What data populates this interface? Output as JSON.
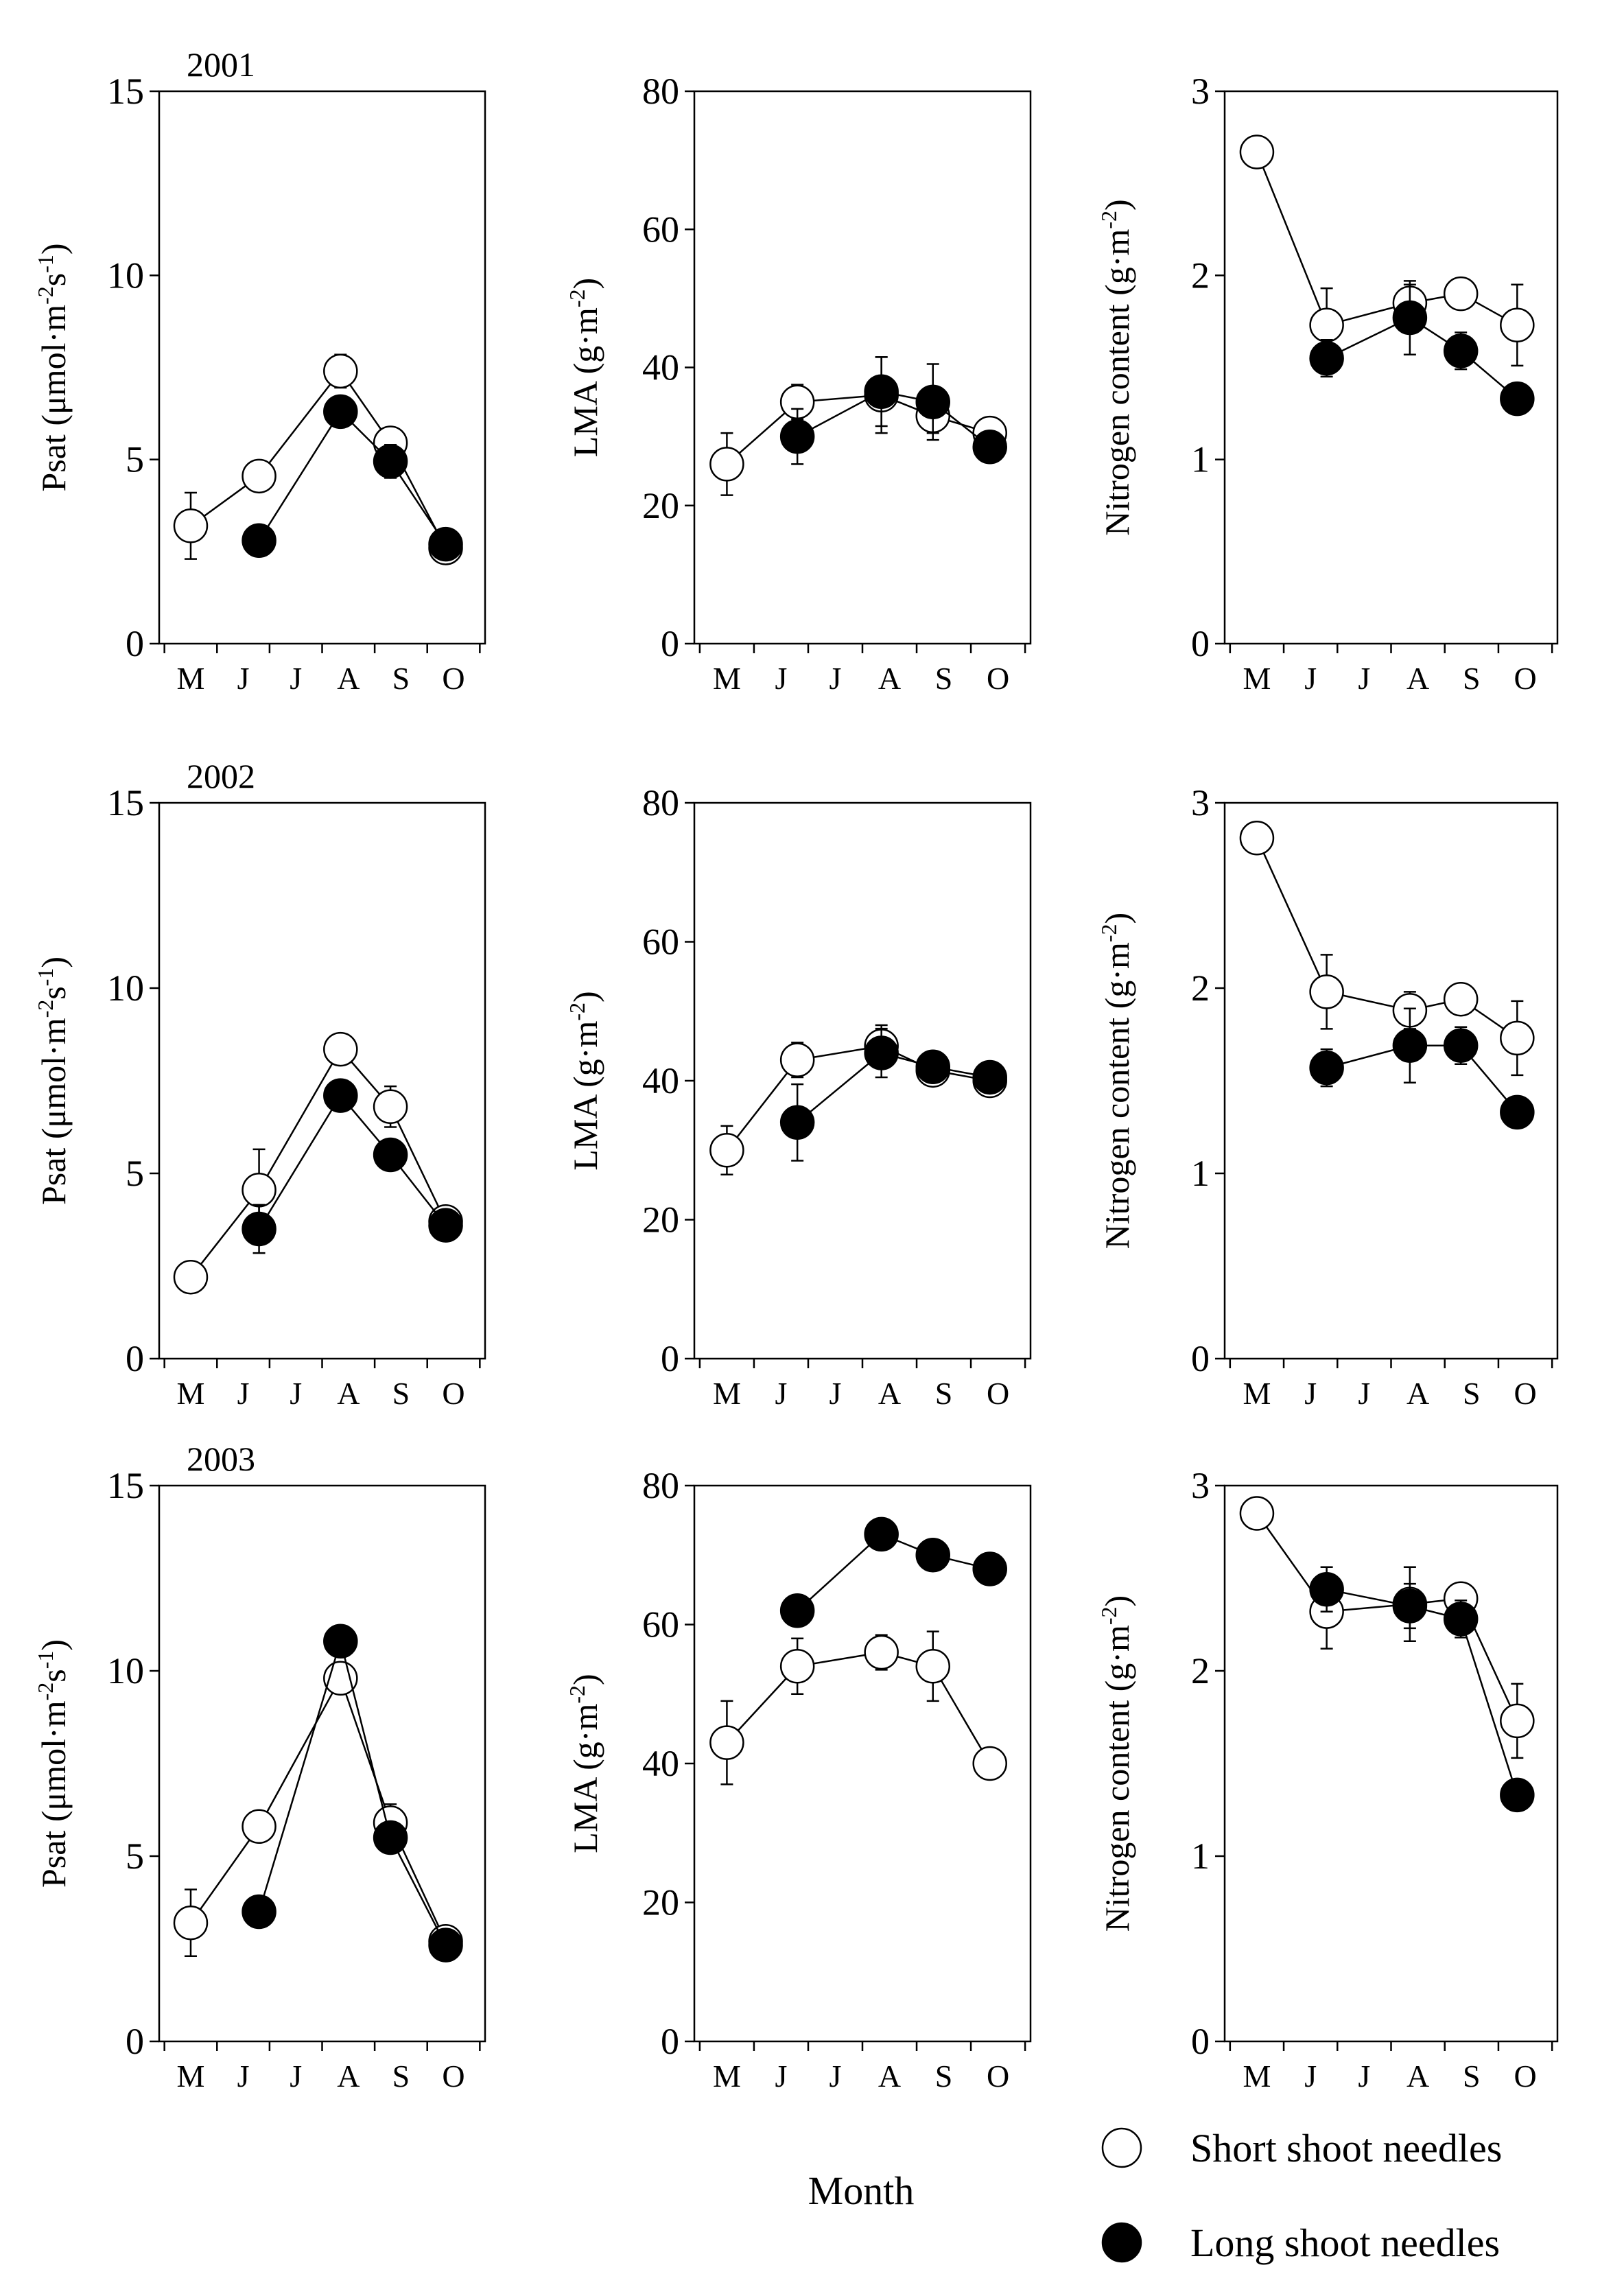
{
  "chart_data": {
    "type": "scatter",
    "figure_xlabel": "Month",
    "month_ticks": [
      "M",
      "J",
      "J",
      "A",
      "S",
      "O"
    ],
    "legend": [
      {
        "key": "short",
        "label": "Short shoot needles",
        "marker": "open-circle"
      },
      {
        "key": "long",
        "label": "Long shoot needles",
        "marker": "filled-circle"
      }
    ],
    "panels": [
      {
        "id": "psat-2001",
        "title": "2001",
        "ylabel_parts": [
          "Psat (μmol·m",
          "-2",
          "s",
          "-1",
          ")"
        ],
        "ylim": [
          0,
          15
        ],
        "yticks": [
          0,
          5,
          10,
          15
        ],
        "series": [
          {
            "key": "short",
            "x": [
              5.0,
              6.3,
              7.85,
              8.8,
              9.85
            ],
            "y": [
              3.2,
              4.55,
              7.4,
              5.45,
              2.6
            ],
            "err": [
              0.9,
              0.25,
              0.45,
              0.3,
              0.15
            ]
          },
          {
            "key": "long",
            "x": [
              6.3,
              7.85,
              8.8,
              9.85
            ],
            "y": [
              2.8,
              6.3,
              4.95,
              2.7
            ],
            "err": [
              0.3,
              0.25,
              0.45,
              0.15
            ]
          }
        ]
      },
      {
        "id": "lma-2001",
        "title": "",
        "ylabel_parts": [
          "LMA (g·m",
          "-2",
          ")"
        ],
        "ylim": [
          0,
          80
        ],
        "yticks": [
          0,
          20,
          40,
          60,
          80
        ],
        "series": [
          {
            "key": "short",
            "x": [
              5.0,
              6.3,
              7.85,
              8.8,
              9.85
            ],
            "y": [
              26,
              35,
              36,
              33,
              30.5
            ],
            "err": [
              4.5,
              2.5,
              5.5,
              2.5,
              1.5
            ]
          },
          {
            "key": "long",
            "x": [
              6.3,
              7.85,
              8.8,
              9.85
            ],
            "y": [
              30,
              36.5,
              35,
              28.5
            ],
            "err": [
              4,
              5,
              5.5,
              1.5
            ]
          }
        ]
      },
      {
        "id": "n-2001",
        "title": "",
        "ylabel_parts": [
          "Nitrogen content (g·m",
          "-2",
          ")"
        ],
        "ylim": [
          0,
          3
        ],
        "yticks": [
          0,
          1,
          2,
          3
        ],
        "series": [
          {
            "key": "short",
            "x": [
              5.0,
              6.3,
              7.85,
              8.8,
              9.85
            ],
            "y": [
              2.67,
              1.73,
              1.85,
              1.9,
              1.73
            ],
            "err": [
              0.07,
              0.2,
              0.1,
              0.05,
              0.22
            ]
          },
          {
            "key": "long",
            "x": [
              6.3,
              7.85,
              8.8,
              9.85
            ],
            "y": [
              1.55,
              1.77,
              1.59,
              1.33
            ],
            "err": [
              0.1,
              0.2,
              0.1,
              0.04
            ]
          }
        ]
      },
      {
        "id": "psat-2002",
        "title": "2002",
        "ylabel_parts": [
          "Psat (μmol·m",
          "-2",
          "s",
          "-1",
          ")"
        ],
        "ylim": [
          0,
          15
        ],
        "yticks": [
          0,
          5,
          10,
          15
        ],
        "series": [
          {
            "key": "short",
            "x": [
              5.0,
              6.3,
              7.85,
              8.8,
              9.85
            ],
            "y": [
              2.2,
              4.55,
              8.35,
              6.8,
              3.7
            ],
            "err": [
              0.1,
              1.1,
              0.3,
              0.55,
              0.2
            ]
          },
          {
            "key": "long",
            "x": [
              6.3,
              7.85,
              8.8,
              9.85
            ],
            "y": [
              3.5,
              7.1,
              5.5,
              3.6
            ],
            "err": [
              0.65,
              0.4,
              0.2,
              0.2
            ]
          }
        ]
      },
      {
        "id": "lma-2002",
        "title": "",
        "ylabel_parts": [
          "LMA (g·m",
          "-2",
          ")"
        ],
        "ylim": [
          0,
          80
        ],
        "yticks": [
          0,
          20,
          40,
          60,
          80
        ],
        "series": [
          {
            "key": "short",
            "x": [
              5.0,
              6.3,
              7.85,
              8.8,
              9.85
            ],
            "y": [
              30,
              43,
              45,
              41.5,
              40
            ],
            "err": [
              3.5,
              2.5,
              3,
              2,
              1
            ]
          },
          {
            "key": "long",
            "x": [
              6.3,
              7.85,
              8.8,
              9.85
            ],
            "y": [
              34,
              44,
              42,
              40.5
            ],
            "err": [
              5.5,
              3.5,
              2,
              1
            ]
          }
        ]
      },
      {
        "id": "n-2002",
        "title": "",
        "ylabel_parts": [
          "Nitrogen content (g·m",
          "-2",
          ")"
        ],
        "ylim": [
          0,
          3
        ],
        "yticks": [
          0,
          1,
          2,
          3
        ],
        "series": [
          {
            "key": "short",
            "x": [
              5.0,
              6.3,
              7.85,
              8.8,
              9.85
            ],
            "y": [
              2.81,
              1.98,
              1.88,
              1.94,
              1.73
            ],
            "err": [
              0.04,
              0.2,
              0.1,
              0.05,
              0.2
            ]
          },
          {
            "key": "long",
            "x": [
              6.3,
              7.85,
              8.8,
              9.85
            ],
            "y": [
              1.57,
              1.69,
              1.69,
              1.33
            ],
            "err": [
              0.1,
              0.2,
              0.1,
              0.04
            ]
          }
        ]
      },
      {
        "id": "psat-2003",
        "title": "2003",
        "ylabel_parts": [
          "Psat (μmol·m",
          "-2",
          "s",
          "-1",
          ")"
        ],
        "ylim": [
          0,
          15
        ],
        "yticks": [
          0,
          5,
          10,
          15
        ],
        "series": [
          {
            "key": "short",
            "x": [
              5.0,
              6.3,
              7.85,
              8.8,
              9.85
            ],
            "y": [
              3.2,
              5.8,
              9.8,
              5.9,
              2.7
            ],
            "err": [
              0.9,
              0.2,
              0.3,
              0.5,
              0.15
            ]
          },
          {
            "key": "long",
            "x": [
              6.3,
              7.85,
              8.8,
              9.85
            ],
            "y": [
              3.5,
              10.8,
              5.5,
              2.6
            ],
            "err": [
              0.2,
              0.4,
              0.2,
              0.15
            ]
          }
        ]
      },
      {
        "id": "lma-2003",
        "title": "",
        "ylabel_parts": [
          "LMA (g·m",
          "-2",
          ")"
        ],
        "ylim": [
          0,
          80
        ],
        "yticks": [
          0,
          20,
          40,
          60,
          80
        ],
        "series": [
          {
            "key": "short",
            "x": [
              5.0,
              6.3,
              7.85,
              8.8,
              9.85
            ],
            "y": [
              43,
              54,
              56,
              54,
              40
            ],
            "err": [
              6,
              4,
              2.5,
              5,
              1
            ]
          },
          {
            "key": "long",
            "x": [
              6.3,
              7.85,
              8.8,
              9.85
            ],
            "y": [
              62,
              73,
              70,
              68
            ],
            "err": [
              2,
              1.5,
              2,
              1
            ]
          }
        ]
      },
      {
        "id": "n-2003",
        "title": "",
        "ylabel_parts": [
          "Nitrogen content (g·m",
          "-2",
          ")"
        ],
        "ylim": [
          0,
          3
        ],
        "yticks": [
          0,
          1,
          2,
          3
        ],
        "series": [
          {
            "key": "short",
            "x": [
              5.0,
              6.3,
              7.85,
              8.8,
              9.85
            ],
            "y": [
              2.85,
              2.32,
              2.36,
              2.39,
              1.73
            ],
            "err": [
              0.04,
              0.2,
              0.2,
              0.05,
              0.2
            ]
          },
          {
            "key": "long",
            "x": [
              6.3,
              7.85,
              8.8,
              9.85
            ],
            "y": [
              2.44,
              2.35,
              2.28,
              1.33
            ],
            "err": [
              0.12,
              0.12,
              0.1,
              0.04
            ]
          }
        ]
      }
    ]
  }
}
